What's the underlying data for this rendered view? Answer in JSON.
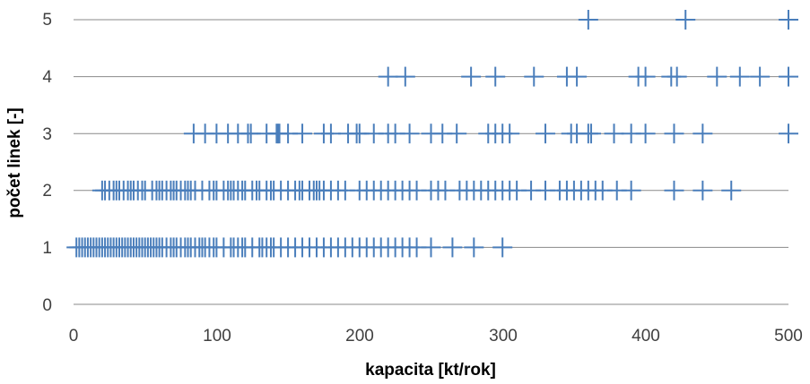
{
  "chart_data": {
    "type": "scatter",
    "title": "",
    "xlabel": "kapacita [kt/rok]",
    "ylabel": "počet linek [-]",
    "xlim": [
      0,
      500
    ],
    "ylim": [
      0,
      5
    ],
    "x_ticks": [
      "0",
      "100",
      "200",
      "300",
      "400",
      "500"
    ],
    "y_ticks": [
      "0",
      "1",
      "2",
      "3",
      "4",
      "5"
    ],
    "grid": "horizontal",
    "legend": "none",
    "marker": "plus",
    "colors": {
      "series": "#4a7ebb",
      "grid": "#898989",
      "text": "#404040"
    },
    "series": [
      {
        "x": [
          2,
          4,
          6,
          8,
          10,
          12,
          14,
          16,
          18,
          20,
          22,
          24,
          26,
          28,
          30,
          32,
          34,
          36,
          38,
          40,
          42,
          44,
          46,
          48,
          50,
          52,
          54,
          56,
          58,
          60,
          62,
          65,
          68,
          70,
          72,
          75,
          78,
          80,
          82,
          85,
          88,
          90,
          92,
          95,
          98,
          100,
          105,
          110,
          112,
          115,
          118,
          120,
          125,
          130,
          132,
          135,
          138,
          140,
          145,
          150,
          155,
          160,
          165,
          170,
          175,
          180,
          185,
          190,
          195,
          200,
          205,
          210,
          215,
          220,
          225,
          230,
          235,
          240,
          250,
          265,
          280,
          300
        ],
        "y": [
          1,
          1,
          1,
          1,
          1,
          1,
          1,
          1,
          1,
          1,
          1,
          1,
          1,
          1,
          1,
          1,
          1,
          1,
          1,
          1,
          1,
          1,
          1,
          1,
          1,
          1,
          1,
          1,
          1,
          1,
          1,
          1,
          1,
          1,
          1,
          1,
          1,
          1,
          1,
          1,
          1,
          1,
          1,
          1,
          1,
          1,
          1,
          1,
          1,
          1,
          1,
          1,
          1,
          1,
          1,
          1,
          1,
          1,
          1,
          1,
          1,
          1,
          1,
          1,
          1,
          1,
          1,
          1,
          1,
          1,
          1,
          1,
          1,
          1,
          1,
          1,
          1,
          1,
          1,
          1,
          1,
          1
        ]
      },
      {
        "x": [
          20,
          22,
          25,
          28,
          30,
          32,
          35,
          38,
          40,
          42,
          45,
          48,
          50,
          55,
          58,
          60,
          62,
          65,
          68,
          70,
          72,
          75,
          78,
          80,
          82,
          85,
          90,
          95,
          98,
          100,
          105,
          108,
          110,
          112,
          115,
          118,
          120,
          125,
          128,
          130,
          135,
          138,
          140,
          145,
          150,
          155,
          158,
          160,
          165,
          168,
          170,
          172,
          175,
          180,
          185,
          190,
          200,
          205,
          210,
          215,
          220,
          225,
          230,
          235,
          240,
          250,
          255,
          260,
          270,
          275,
          280,
          285,
          290,
          295,
          300,
          305,
          310,
          320,
          330,
          340,
          345,
          350,
          355,
          360,
          365,
          370,
          380,
          390,
          420,
          440,
          460
        ],
        "y": [
          2,
          2,
          2,
          2,
          2,
          2,
          2,
          2,
          2,
          2,
          2,
          2,
          2,
          2,
          2,
          2,
          2,
          2,
          2,
          2,
          2,
          2,
          2,
          2,
          2,
          2,
          2,
          2,
          2,
          2,
          2,
          2,
          2,
          2,
          2,
          2,
          2,
          2,
          2,
          2,
          2,
          2,
          2,
          2,
          2,
          2,
          2,
          2,
          2,
          2,
          2,
          2,
          2,
          2,
          2,
          2,
          2,
          2,
          2,
          2,
          2,
          2,
          2,
          2,
          2,
          2,
          2,
          2,
          2,
          2,
          2,
          2,
          2,
          2,
          2,
          2,
          2,
          2,
          2,
          2,
          2,
          2,
          2,
          2,
          2,
          2,
          2,
          2,
          2,
          2,
          2
        ]
      },
      {
        "x": [
          84,
          92,
          100,
          108,
          115,
          122,
          124,
          135,
          142,
          143,
          144,
          150,
          160,
          175,
          180,
          192,
          198,
          200,
          210,
          220,
          225,
          235,
          250,
          258,
          268,
          290,
          295,
          300,
          305,
          330,
          348,
          352,
          360,
          362,
          378,
          390,
          400,
          420,
          440,
          500
        ],
        "y": [
          3,
          3,
          3,
          3,
          3,
          3,
          3,
          3,
          3,
          3,
          3,
          3,
          3,
          3,
          3,
          3,
          3,
          3,
          3,
          3,
          3,
          3,
          3,
          3,
          3,
          3,
          3,
          3,
          3,
          3,
          3,
          3,
          3,
          3,
          3,
          3,
          3,
          3,
          3,
          3
        ]
      },
      {
        "x": [
          220,
          232,
          278,
          295,
          322,
          345,
          352,
          395,
          400,
          418,
          422,
          450,
          466,
          480,
          500
        ],
        "y": [
          4,
          4,
          4,
          4,
          4,
          4,
          4,
          4,
          4,
          4,
          4,
          4,
          4,
          4,
          4
        ]
      },
      {
        "x": [
          360,
          428,
          500
        ],
        "y": [
          5,
          5,
          5
        ]
      }
    ]
  }
}
